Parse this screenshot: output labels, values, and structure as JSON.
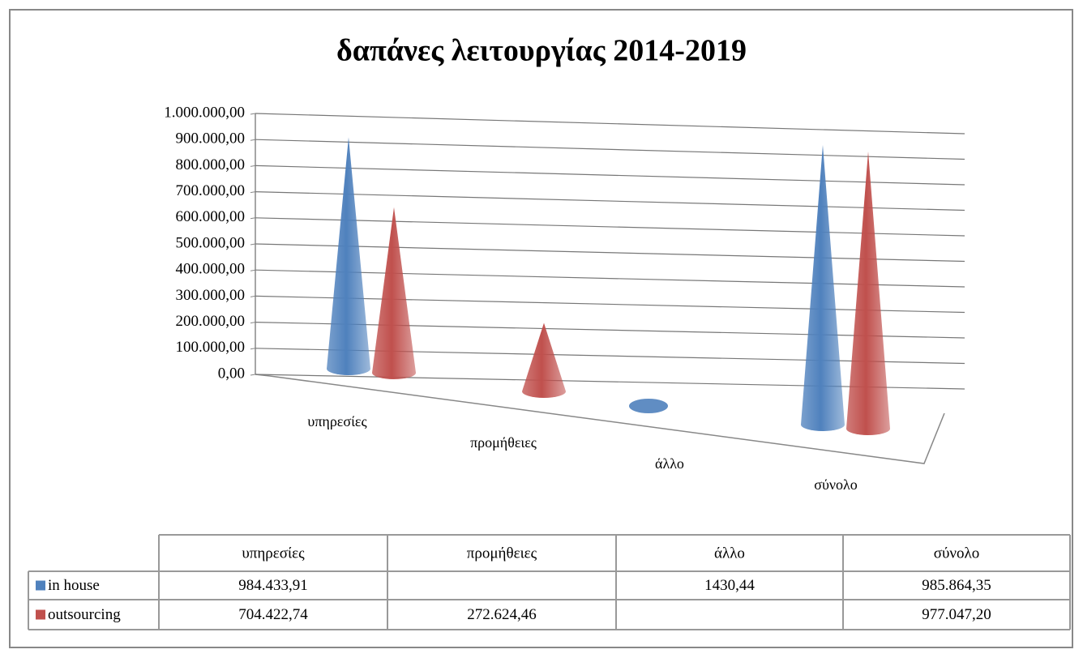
{
  "chart_data": {
    "type": "cone",
    "title": "δαπάνες λειτουργίας 2014-2019",
    "categories": [
      "υπηρεσίες",
      "προμήθειες",
      "άλλο",
      "σύνολο"
    ],
    "series": [
      {
        "name": "in house",
        "color": "#4f81bd",
        "values": [
          984433.91,
          null,
          1430.44,
          985864.35
        ],
        "value_labels": [
          "984.433,91",
          null,
          "1430,44",
          "985.864,35"
        ]
      },
      {
        "name": "outsourcing",
        "color": "#c0504d",
        "values": [
          704422.74,
          272624.46,
          null,
          977047.2
        ],
        "value_labels": [
          "704.422,74",
          "272.624,46",
          null,
          "977.047,20"
        ]
      }
    ],
    "ylim": [
      0,
      1000000
    ],
    "yticks": [
      {
        "value": 0,
        "label": "0,00"
      },
      {
        "value": 100000,
        "label": "100.000,00"
      },
      {
        "value": 200000,
        "label": "200.000,00"
      },
      {
        "value": 300000,
        "label": "300.000,00"
      },
      {
        "value": 400000,
        "label": "400.000,00"
      },
      {
        "value": 500000,
        "label": "500.000,00"
      },
      {
        "value": 600000,
        "label": "600.000,00"
      },
      {
        "value": 700000,
        "label": "700.000,00"
      },
      {
        "value": 800000,
        "label": "800.000,00"
      },
      {
        "value": 900000,
        "label": "900.000,00"
      },
      {
        "value": 1000000,
        "label": "1.000.000,00"
      }
    ],
    "grid": true,
    "data_table": true
  }
}
